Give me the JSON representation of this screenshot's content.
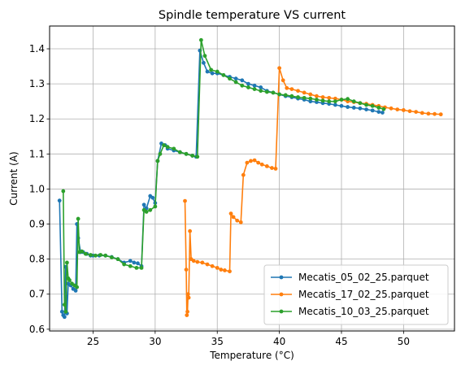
{
  "chart_data": {
    "type": "line",
    "title": "Spindle temperature VS current",
    "xlabel": "Temperature (°C)",
    "ylabel": "Current (A)",
    "xlim": [
      21.5,
      54.1
    ],
    "ylim": [
      0.595,
      1.465
    ],
    "xticks": [
      25,
      30,
      35,
      40,
      45,
      50
    ],
    "yticks": [
      0.6,
      0.7,
      0.8,
      0.9,
      1.0,
      1.1,
      1.2,
      1.3,
      1.4
    ],
    "xtick_labels": [
      "25",
      "30",
      "35",
      "40",
      "45",
      "50"
    ],
    "ytick_labels": [
      "0.6",
      "0.7",
      "0.8",
      "0.9",
      "1.0",
      "1.1",
      "1.2",
      "1.3",
      "1.4"
    ],
    "grid": true,
    "legend_position": "lower right",
    "series": [
      {
        "name": "Mecatis_05_02_25.parquet",
        "color": "#1f77b4",
        "points": [
          [
            22.3,
            0.967
          ],
          [
            22.5,
            0.65
          ],
          [
            22.6,
            0.64
          ],
          [
            22.7,
            0.635
          ],
          [
            22.8,
            0.778
          ],
          [
            22.9,
            0.645
          ],
          [
            23.0,
            0.73
          ],
          [
            23.2,
            0.725
          ],
          [
            23.4,
            0.715
          ],
          [
            23.6,
            0.71
          ],
          [
            23.7,
            0.9
          ],
          [
            23.8,
            0.86
          ],
          [
            24.0,
            0.82
          ],
          [
            24.2,
            0.82
          ],
          [
            24.5,
            0.815
          ],
          [
            24.8,
            0.81
          ],
          [
            25.0,
            0.81
          ],
          [
            25.5,
            0.81
          ],
          [
            26.0,
            0.81
          ],
          [
            26.5,
            0.806
          ],
          [
            27.0,
            0.8
          ],
          [
            27.5,
            0.79
          ],
          [
            28.0,
            0.795
          ],
          [
            28.3,
            0.79
          ],
          [
            28.6,
            0.788
          ],
          [
            28.9,
            0.78
          ],
          [
            29.1,
            0.955
          ],
          [
            29.3,
            0.945
          ],
          [
            29.6,
            0.98
          ],
          [
            29.8,
            0.975
          ],
          [
            30.0,
            0.96
          ],
          [
            30.2,
            1.08
          ],
          [
            30.5,
            1.13
          ],
          [
            30.8,
            1.125
          ],
          [
            31.0,
            1.115
          ],
          [
            31.5,
            1.11
          ],
          [
            32.0,
            1.105
          ],
          [
            32.5,
            1.1
          ],
          [
            33.0,
            1.095
          ],
          [
            33.3,
            1.092
          ],
          [
            33.6,
            1.395
          ],
          [
            33.9,
            1.36
          ],
          [
            34.2,
            1.335
          ],
          [
            34.6,
            1.33
          ],
          [
            35.0,
            1.33
          ],
          [
            35.5,
            1.325
          ],
          [
            36.0,
            1.32
          ],
          [
            36.5,
            1.315
          ],
          [
            37.0,
            1.31
          ],
          [
            37.5,
            1.3
          ],
          [
            38.0,
            1.295
          ],
          [
            38.5,
            1.29
          ],
          [
            39.0,
            1.28
          ],
          [
            39.5,
            1.275
          ],
          [
            40.0,
            1.27
          ],
          [
            40.5,
            1.265
          ],
          [
            41.0,
            1.262
          ],
          [
            41.5,
            1.258
          ],
          [
            42.0,
            1.255
          ],
          [
            42.5,
            1.25
          ],
          [
            43.0,
            1.248
          ],
          [
            43.5,
            1.245
          ],
          [
            44.0,
            1.243
          ],
          [
            44.5,
            1.24
          ],
          [
            45.0,
            1.237
          ],
          [
            45.5,
            1.234
          ],
          [
            46.0,
            1.232
          ],
          [
            46.5,
            1.23
          ],
          [
            47.0,
            1.227
          ],
          [
            47.5,
            1.224
          ],
          [
            48.0,
            1.22
          ],
          [
            48.3,
            1.218
          ]
        ]
      },
      {
        "name": "Mecatis_17_02_25.parquet",
        "color": "#ff7f0e",
        "points": [
          [
            32.4,
            0.966
          ],
          [
            32.5,
            0.77
          ],
          [
            32.55,
            0.64
          ],
          [
            32.6,
            0.65
          ],
          [
            32.65,
            0.7
          ],
          [
            32.7,
            0.69
          ],
          [
            32.8,
            0.88
          ],
          [
            32.9,
            0.8
          ],
          [
            33.1,
            0.795
          ],
          [
            33.4,
            0.792
          ],
          [
            33.8,
            0.79
          ],
          [
            34.2,
            0.785
          ],
          [
            34.6,
            0.78
          ],
          [
            35.0,
            0.775
          ],
          [
            35.3,
            0.77
          ],
          [
            35.6,
            0.768
          ],
          [
            36.0,
            0.765
          ],
          [
            36.1,
            0.93
          ],
          [
            36.3,
            0.92
          ],
          [
            36.6,
            0.91
          ],
          [
            36.9,
            0.905
          ],
          [
            37.1,
            1.04
          ],
          [
            37.4,
            1.075
          ],
          [
            37.7,
            1.08
          ],
          [
            38.0,
            1.082
          ],
          [
            38.3,
            1.075
          ],
          [
            38.6,
            1.07
          ],
          [
            39.0,
            1.065
          ],
          [
            39.4,
            1.06
          ],
          [
            39.7,
            1.058
          ],
          [
            40.0,
            1.345
          ],
          [
            40.3,
            1.31
          ],
          [
            40.6,
            1.288
          ],
          [
            41.0,
            1.285
          ],
          [
            41.5,
            1.28
          ],
          [
            42.0,
            1.275
          ],
          [
            42.5,
            1.27
          ],
          [
            43.0,
            1.265
          ],
          [
            43.5,
            1.262
          ],
          [
            44.0,
            1.26
          ],
          [
            44.5,
            1.258
          ],
          [
            45.0,
            1.255
          ],
          [
            45.5,
            1.25
          ],
          [
            46.0,
            1.248
          ],
          [
            46.5,
            1.245
          ],
          [
            47.0,
            1.243
          ],
          [
            47.5,
            1.24
          ],
          [
            48.0,
            1.237
          ],
          [
            48.5,
            1.233
          ],
          [
            49.0,
            1.23
          ],
          [
            49.5,
            1.227
          ],
          [
            50.0,
            1.225
          ],
          [
            50.5,
            1.222
          ],
          [
            51.0,
            1.22
          ],
          [
            51.5,
            1.217
          ],
          [
            52.0,
            1.215
          ],
          [
            52.5,
            1.214
          ],
          [
            53.0,
            1.213
          ]
        ]
      },
      {
        "name": "Mecatis_10_03_25.parquet",
        "color": "#2ca02c",
        "points": [
          [
            22.6,
            0.994
          ],
          [
            22.7,
            0.67
          ],
          [
            22.8,
            0.65
          ],
          [
            22.9,
            0.79
          ],
          [
            23.0,
            0.745
          ],
          [
            23.1,
            0.74
          ],
          [
            23.3,
            0.73
          ],
          [
            23.5,
            0.725
          ],
          [
            23.7,
            0.72
          ],
          [
            23.8,
            0.915
          ],
          [
            23.9,
            0.82
          ],
          [
            24.1,
            0.822
          ],
          [
            24.4,
            0.815
          ],
          [
            24.8,
            0.812
          ],
          [
            25.2,
            0.81
          ],
          [
            25.6,
            0.812
          ],
          [
            26.0,
            0.81
          ],
          [
            26.5,
            0.805
          ],
          [
            27.0,
            0.8
          ],
          [
            27.5,
            0.785
          ],
          [
            28.0,
            0.78
          ],
          [
            28.5,
            0.775
          ],
          [
            28.9,
            0.775
          ],
          [
            29.1,
            0.94
          ],
          [
            29.3,
            0.935
          ],
          [
            29.6,
            0.94
          ],
          [
            30.0,
            0.95
          ],
          [
            30.2,
            1.08
          ],
          [
            30.4,
            1.1
          ],
          [
            30.7,
            1.125
          ],
          [
            31.0,
            1.12
          ],
          [
            31.5,
            1.115
          ],
          [
            32.0,
            1.105
          ],
          [
            32.5,
            1.1
          ],
          [
            33.0,
            1.095
          ],
          [
            33.4,
            1.092
          ],
          [
            33.7,
            1.425
          ],
          [
            34.0,
            1.38
          ],
          [
            34.5,
            1.34
          ],
          [
            35.0,
            1.335
          ],
          [
            35.5,
            1.325
          ],
          [
            36.0,
            1.315
          ],
          [
            36.5,
            1.305
          ],
          [
            37.0,
            1.295
          ],
          [
            37.5,
            1.29
          ],
          [
            38.0,
            1.285
          ],
          [
            38.5,
            1.28
          ],
          [
            39.0,
            1.277
          ],
          [
            39.5,
            1.275
          ],
          [
            40.0,
            1.27
          ],
          [
            40.5,
            1.268
          ],
          [
            41.0,
            1.265
          ],
          [
            41.5,
            1.262
          ],
          [
            42.0,
            1.26
          ],
          [
            42.5,
            1.258
          ],
          [
            43.0,
            1.255
          ],
          [
            43.5,
            1.252
          ],
          [
            44.0,
            1.25
          ],
          [
            44.5,
            1.25
          ],
          [
            45.0,
            1.255
          ],
          [
            45.5,
            1.257
          ],
          [
            46.0,
            1.25
          ],
          [
            46.5,
            1.245
          ],
          [
            47.0,
            1.24
          ],
          [
            47.5,
            1.237
          ],
          [
            48.0,
            1.232
          ],
          [
            48.4,
            1.228
          ]
        ]
      }
    ]
  }
}
